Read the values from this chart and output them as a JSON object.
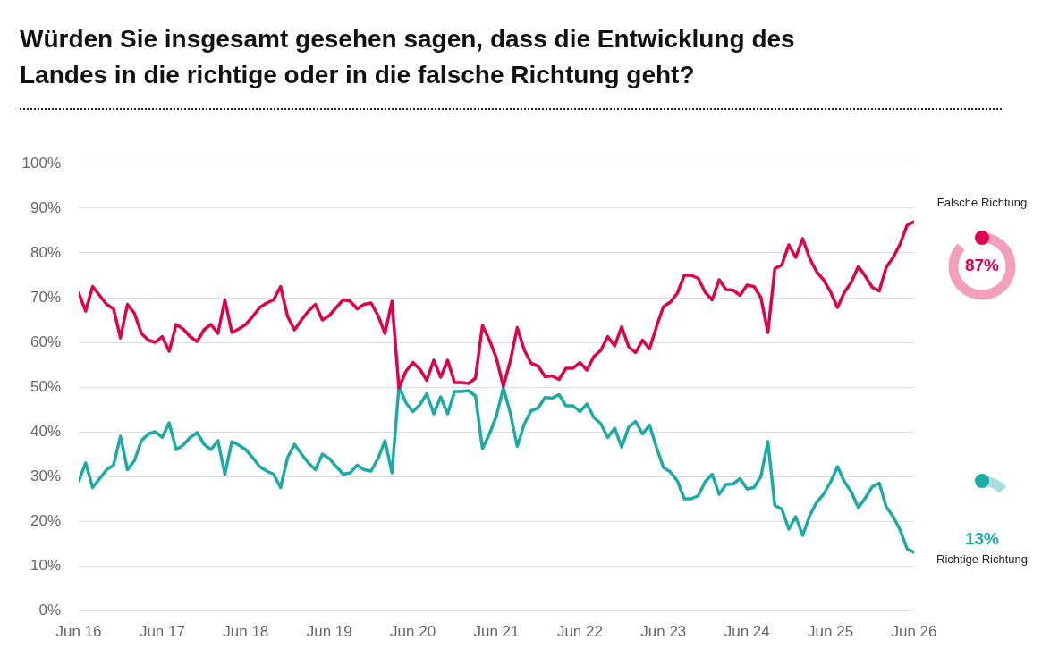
{
  "chart_data": {
    "type": "line",
    "title": "Würden Sie insgesamt gesehen sagen, dass die Entwicklung des Landes in die richtige oder in die falsche Richtung geht?",
    "x": [
      "2016-06",
      "2016-07",
      "2016-08",
      "2016-09",
      "2016-10",
      "2016-11",
      "2016-12",
      "2017-01",
      "2017-02",
      "2017-03",
      "2017-04",
      "2017-05",
      "2017-06",
      "2017-07",
      "2017-08",
      "2017-09",
      "2017-10",
      "2017-11",
      "2017-12",
      "2018-01",
      "2018-02",
      "2018-03",
      "2018-04",
      "2018-05",
      "2018-06",
      "2018-07",
      "2018-08",
      "2018-09",
      "2018-10",
      "2018-11",
      "2018-12",
      "2019-01",
      "2019-02",
      "2019-03",
      "2019-04",
      "2019-05",
      "2019-06",
      "2019-07",
      "2019-08",
      "2019-09",
      "2019-10",
      "2019-11",
      "2019-12",
      "2020-01",
      "2020-02",
      "2020-03",
      "2020-04",
      "2020-05",
      "2020-06",
      "2020-07",
      "2020-08",
      "2020-09",
      "2020-10",
      "2020-11",
      "2020-12",
      "2021-01",
      "2021-02",
      "2021-03",
      "2021-04",
      "2021-05",
      "2021-06",
      "2021-07",
      "2021-08",
      "2021-09",
      "2021-10",
      "2021-11",
      "2021-12",
      "2022-01",
      "2022-02",
      "2022-03",
      "2022-04",
      "2022-05",
      "2022-06",
      "2022-07",
      "2022-08",
      "2022-09",
      "2022-10",
      "2022-11",
      "2022-12",
      "2023-01",
      "2023-02",
      "2023-03",
      "2023-04",
      "2023-05",
      "2023-06",
      "2023-07",
      "2023-08",
      "2023-09",
      "2023-10",
      "2023-11",
      "2023-12",
      "2024-01",
      "2024-02",
      "2024-03",
      "2024-04",
      "2024-05",
      "2024-06",
      "2024-07",
      "2024-08",
      "2024-09",
      "2024-10",
      "2024-11",
      "2024-12",
      "2025-01",
      "2025-02",
      "2025-03",
      "2025-04",
      "2025-05",
      "2025-06",
      "2025-07",
      "2025-08",
      "2025-09",
      "2025-10",
      "2025-11",
      "2025-12",
      "2026-01",
      "2026-02",
      "2026-03",
      "2026-04",
      "2026-05",
      "2026-06"
    ],
    "series": [
      {
        "name": "Falsche Richtung",
        "color": "#e0004d",
        "values": [
          71,
          67,
          72.5,
          70.5,
          68.5,
          67.5,
          61,
          68.5,
          66.5,
          62,
          60.5,
          60,
          61.3,
          58,
          64,
          63,
          61.3,
          60.2,
          62.8,
          64,
          62,
          69.5,
          62.2,
          63,
          64,
          65.8,
          67.8,
          68.8,
          69.5,
          72.5,
          65.8,
          62.8,
          65,
          67,
          68.5,
          65,
          66,
          67.8,
          69.5,
          69.2,
          67.5,
          68.5,
          68.8,
          66,
          62,
          69.2,
          49.8,
          53.5,
          55.5,
          54,
          51.5,
          56,
          52.2,
          56,
          51,
          51,
          50.8,
          52,
          63.8,
          60.5,
          56.5,
          50.2,
          55.8,
          63.3,
          58.3,
          55.3,
          54.7,
          52.3,
          52.5,
          51.7,
          54.2,
          54.2,
          55.5,
          53.8,
          56.8,
          58.2,
          61.3,
          59.2,
          63.5,
          59,
          57.7,
          60.5,
          58.5,
          63.5,
          68,
          69,
          71,
          75,
          75,
          74.3,
          71.2,
          69.5,
          74,
          71.8,
          71.7,
          70.5,
          72.8,
          72.5,
          70,
          62.2,
          76.5,
          77.3,
          81.8,
          79,
          83.2,
          78.8,
          75.8,
          74,
          71.3,
          67.8,
          71.2,
          73.5,
          77,
          74.8,
          72.3,
          71.5,
          76.8,
          79,
          82,
          86.2,
          87
        ]
      },
      {
        "name": "Richtige Richtung",
        "color": "#1aaba5",
        "values": [
          29,
          33,
          27.5,
          29.5,
          31.5,
          32.5,
          39,
          31.5,
          33.5,
          38,
          39.5,
          40,
          38.7,
          42,
          36,
          37,
          38.7,
          39.8,
          37.2,
          36,
          38,
          30.5,
          37.8,
          37,
          36,
          34.2,
          32.2,
          31.2,
          30.5,
          27.5,
          34.2,
          37.2,
          35,
          33,
          31.5,
          35,
          34,
          32.2,
          30.5,
          30.8,
          32.5,
          31.5,
          31.2,
          34,
          38,
          30.8,
          50.2,
          46.5,
          44.5,
          46,
          48.5,
          44,
          47.8,
          44,
          49,
          49,
          49.2,
          48,
          36.2,
          39.5,
          43.5,
          49.8,
          44.2,
          36.7,
          41.7,
          44.7,
          45.3,
          47.7,
          47.5,
          48.3,
          45.8,
          45.8,
          44.5,
          46.2,
          43.2,
          41.8,
          38.7,
          40.8,
          36.5,
          41,
          42.3,
          39.5,
          41.5,
          36.5,
          32,
          31,
          29,
          25,
          25,
          25.7,
          28.8,
          30.5,
          26,
          28.2,
          28.3,
          29.5,
          27.2,
          27.5,
          30,
          37.8,
          23.5,
          22.7,
          18.2,
          21,
          16.8,
          21.2,
          24.2,
          26,
          28.7,
          32.2,
          28.8,
          26.5,
          23,
          25.2,
          27.7,
          28.5,
          23.2,
          21,
          18,
          13.8,
          13
        ]
      }
    ],
    "annotations": [
      "87%",
      "13%"
    ],
    "xlim": [
      "2016-06",
      "2026-06"
    ],
    "xticks": [
      {
        "value": "2016-06",
        "label": "Jun 16"
      },
      {
        "value": "2017-06",
        "label": "Jun 17"
      },
      {
        "value": "2018-06",
        "label": "Jun 18"
      },
      {
        "value": "2019-06",
        "label": "Jun 19"
      },
      {
        "value": "2020-06",
        "label": "Jun 20"
      },
      {
        "value": "2021-06",
        "label": "Jun 21"
      },
      {
        "value": "2022-06",
        "label": "Jun 22"
      },
      {
        "value": "2023-06",
        "label": "Jun 23"
      },
      {
        "value": "2024-06",
        "label": "Jun 24"
      },
      {
        "value": "2025-06",
        "label": "Jun 25"
      },
      {
        "value": "2026-06",
        "label": "Jun 26"
      }
    ],
    "ylim": [
      0,
      100
    ],
    "yticks": [
      {
        "value": 0,
        "label": "0%"
      },
      {
        "value": 10,
        "label": "10%"
      },
      {
        "value": 20,
        "label": "20%"
      },
      {
        "value": 30,
        "label": "30%"
      },
      {
        "value": 40,
        "label": "40%"
      },
      {
        "value": 50,
        "label": "50%"
      },
      {
        "value": 60,
        "label": "60%"
      },
      {
        "value": 70,
        "label": "70%"
      },
      {
        "value": 80,
        "label": "80%"
      },
      {
        "value": 90,
        "label": "90%"
      },
      {
        "value": 100,
        "label": "100%"
      }
    ],
    "grid": "y",
    "legend": false,
    "marker": "none",
    "line_style": "solid"
  }
}
